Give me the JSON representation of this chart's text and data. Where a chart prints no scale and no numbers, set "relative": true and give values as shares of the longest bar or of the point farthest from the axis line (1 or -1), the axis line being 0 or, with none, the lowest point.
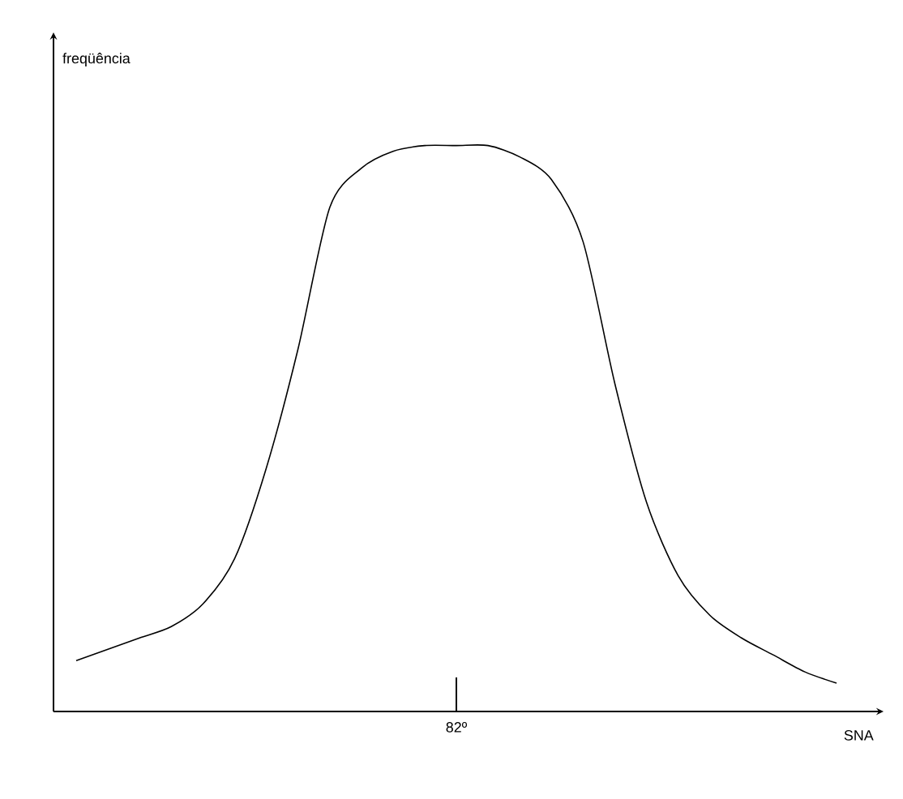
{
  "chart_data": {
    "type": "line",
    "relative": true,
    "xlabel": "SNA",
    "categories": [
      null,
      null,
      null,
      null,
      null,
      null,
      null,
      null,
      null,
      null,
      null,
      null,
      null,
      null,
      null,
      null,
      null,
      null,
      null,
      null,
      null,
      null,
      null,
      null,
      null
    ],
    "values": [
      0.09,
      0.11,
      0.13,
      0.15,
      0.19,
      0.27,
      0.43,
      0.64,
      0.89,
      0.96,
      0.99,
      1,
      1,
      1,
      0.98,
      0.94,
      0.83,
      0.58,
      0.37,
      0.24,
      0.17,
      0.13,
      0.1,
      0.07,
      0.05
    ],
    "color": "#000000",
    "marker": "none",
    "annotations": [
      "freqüência",
      "82º"
    ]
  }
}
